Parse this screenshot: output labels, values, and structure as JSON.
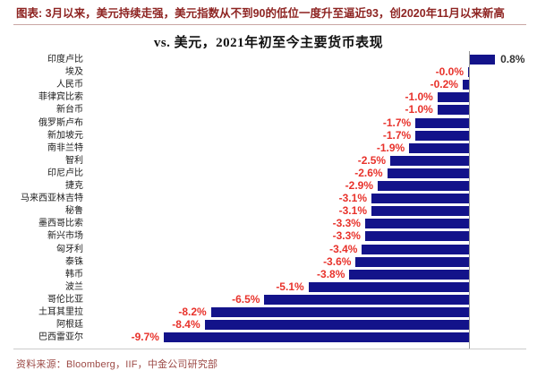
{
  "header": {
    "title": "图表: 3月以来，美元持续走强，美元指数从不到90的低位一度升至逼近93，创2020年11月以来新高"
  },
  "chart_data": {
    "type": "bar",
    "orientation": "horizontal",
    "title": "vs. 美元，2021年初至今主要货币表现",
    "categories": [
      "印度卢比",
      "埃及",
      "人民币",
      "菲律宾比索",
      "新台币",
      "俄罗斯卢布",
      "新加坡元",
      "南非兰特",
      "智利",
      "印尼卢比",
      "捷克",
      "马来西亚林吉特",
      "秘鲁",
      "墨西哥比索",
      "新兴市场",
      "匈牙利",
      "泰铢",
      "韩币",
      "波兰",
      "哥伦比亚",
      "土耳其里拉",
      "阿根廷",
      "巴西雷亚尔"
    ],
    "values": [
      0.8,
      -0.0,
      -0.2,
      -1.0,
      -1.0,
      -1.7,
      -1.7,
      -1.9,
      -2.5,
      -2.6,
      -2.9,
      -3.1,
      -3.1,
      -3.3,
      -3.3,
      -3.4,
      -3.6,
      -3.8,
      -5.1,
      -6.5,
      -8.2,
      -8.4,
      -9.7
    ],
    "value_labels": [
      "0.8%",
      "-0.0%",
      "-0.2%",
      "-1.0%",
      "-1.0%",
      "-1.7%",
      "-1.7%",
      "-1.9%",
      "-2.5%",
      "-2.6%",
      "-2.9%",
      "-3.1%",
      "-3.1%",
      "-3.3%",
      "-3.3%",
      "-3.4%",
      "-3.6%",
      "-3.8%",
      "-5.1%",
      "-6.5%",
      "-8.2%",
      "-8.4%",
      "-9.7%"
    ],
    "xlim": [
      -12.2,
      1.1
    ],
    "grid": false,
    "legend": "none",
    "bar_color": "#13138a",
    "negative_label_color": "#e8322b",
    "positive_label_color": "#333333"
  },
  "footer": {
    "source": "资料来源：Bloomberg，IIF，中金公司研究部"
  }
}
